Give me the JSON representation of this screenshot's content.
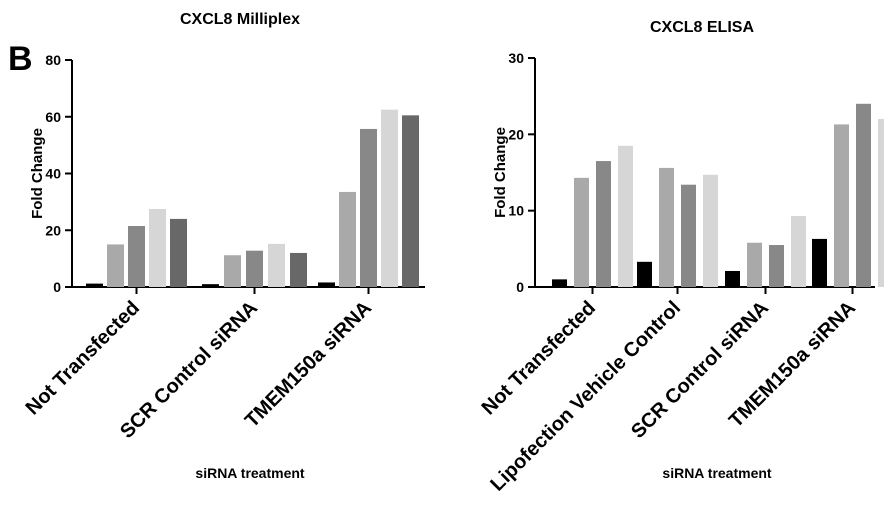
{
  "panel_label": "B",
  "chart_data": [
    {
      "type": "bar",
      "title": "CXCL8 Milliplex",
      "xlabel": "siRNA treatment",
      "ylabel": "Fold Change",
      "ylim": [
        0,
        80
      ],
      "yticks": [
        0,
        20,
        40,
        60,
        80
      ],
      "grid": false,
      "categories": [
        "Not Transfected",
        "SCR Control siRNA",
        "TMEM150a siRNA"
      ],
      "series": [
        {
          "color": "#000000",
          "values": [
            1.2,
            1.0,
            1.6
          ]
        },
        {
          "color": "#a9a9a9",
          "values": [
            15,
            11.2,
            33.5
          ]
        },
        {
          "color": "#888888",
          "values": [
            21.5,
            12.8,
            55.7
          ]
        },
        {
          "color": "#d6d6d6",
          "values": [
            27.5,
            15.2,
            62.5
          ]
        },
        {
          "color": "#686868",
          "values": [
            24,
            12,
            60.5
          ]
        }
      ]
    },
    {
      "type": "bar",
      "title": "CXCL8 ELISA",
      "xlabel": "siRNA treatment",
      "ylabel": "Fold Change",
      "ylim": [
        0,
        30
      ],
      "yticks": [
        0,
        10,
        20,
        30
      ],
      "grid": false,
      "categories": [
        "Not Transfected",
        "Lipofection Vehicle Control",
        "SCR Control siRNA",
        "TMEM150a siRNA"
      ],
      "series": [
        {
          "color": "#000000",
          "values": [
            1.0,
            3.3,
            2.1,
            6.3
          ]
        },
        {
          "color": "#a9a9a9",
          "values": [
            14.3,
            15.6,
            5.8,
            21.3
          ]
        },
        {
          "color": "#888888",
          "values": [
            16.5,
            13.4,
            5.5,
            24.0
          ]
        },
        {
          "color": "#d6d6d6",
          "values": [
            18.5,
            14.7,
            9.3,
            22.0
          ]
        }
      ]
    }
  ]
}
